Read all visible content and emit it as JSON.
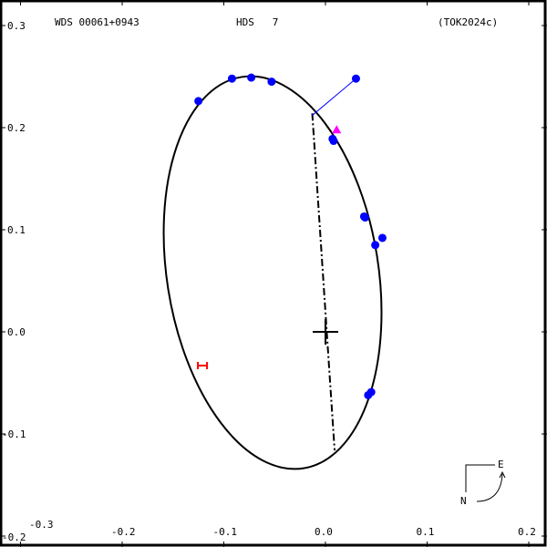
{
  "header": {
    "wds": "WDS 00061+0943",
    "discoverer": "HDS   7",
    "reference": "(TOK2024c)"
  },
  "compass": {
    "north": "N",
    "east": "E"
  },
  "chart_data": {
    "type": "scatter",
    "title": "",
    "xlim": [
      -0.3,
      0.22
    ],
    "ylim": [
      -0.21,
      0.31
    ],
    "x_ticks": [
      -0.3,
      -0.2,
      -0.1,
      0.0,
      0.1,
      0.2
    ],
    "x_tick_labels": [
      "-0.3",
      "-0.2",
      "-0.1",
      "0.0",
      "0.1",
      "0.2"
    ],
    "y_ticks": [
      0.3,
      0.2,
      0.1,
      0.0,
      -0.1,
      -0.2
    ],
    "y_tick_labels": [
      "0.3",
      "0.2",
      "0.1",
      "0.0",
      "-0.1",
      "-0.2"
    ],
    "grid": false,
    "orbit_ellipse": {
      "center": [
        -0.052,
        0.058
      ],
      "semi_major": 0.194,
      "semi_minor": 0.104,
      "tilt_deg": -9,
      "color": "#000000"
    },
    "line_of_nodes": {
      "from": [
        -0.013,
        0.214
      ],
      "to": [
        0.009,
        -0.116
      ]
    },
    "primary": [
      0.0,
      0.0
    ],
    "observations": {
      "color": "#0000ff",
      "points": [
        [
          -0.125,
          0.226
        ],
        [
          -0.092,
          0.248
        ],
        [
          -0.073,
          0.249
        ],
        [
          -0.053,
          0.245
        ],
        [
          0.03,
          0.248
        ],
        [
          0.007,
          0.189
        ],
        [
          0.008,
          0.187
        ],
        [
          0.038,
          0.113
        ],
        [
          0.039,
          0.112
        ],
        [
          0.049,
          0.085
        ],
        [
          0.056,
          0.092
        ],
        [
          0.042,
          -0.062
        ],
        [
          0.045,
          -0.059
        ]
      ],
      "residual": {
        "from": [
          0.03,
          0.248
        ],
        "to": [
          -0.013,
          0.212
        ]
      }
    },
    "other_measures": [
      {
        "marker": "triangle",
        "color": "#ff00ff",
        "point": [
          0.011,
          0.198
        ]
      },
      {
        "marker": "H",
        "color": "#ff0000",
        "point": [
          -0.121,
          -0.033
        ]
      }
    ]
  }
}
